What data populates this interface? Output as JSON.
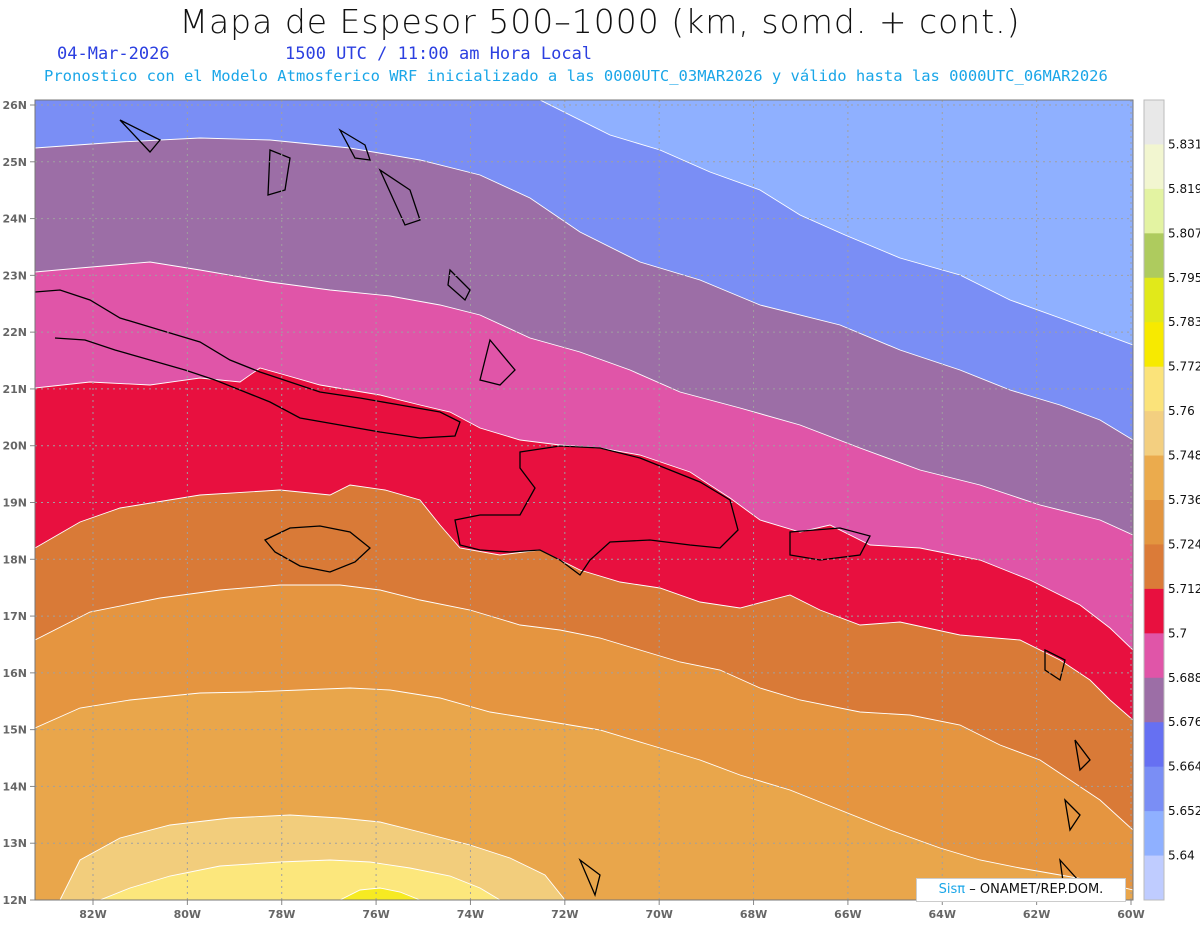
{
  "title": "Mapa de Espesor 500–1000 (km, somd. + cont.)",
  "date": "04-Mar-2026",
  "time": "1500 UTC / 11:00 am Hora Local",
  "description": "Pronostico con el Modelo Atmosferico WRF inicializado a las 0000UTC_03MAR2026 y válido hasta las  0000UTC_06MAR2026",
  "credit": {
    "brand": "Sisπ",
    "text": "– ONAMET/REP.DOM."
  },
  "map": {
    "lat_labels": [
      "26N",
      "25N",
      "24N",
      "23N",
      "22N",
      "21N",
      "20N",
      "19N",
      "18N",
      "17N",
      "16N",
      "15N",
      "14N",
      "13N",
      "12N"
    ],
    "lon_labels": [
      "82W",
      "80W",
      "78W",
      "76W",
      "74W",
      "72W",
      "70W",
      "68W",
      "66W",
      "64W",
      "62W",
      "60W"
    ],
    "band_colors": [
      "#8fb0ff",
      "#7a8ef5",
      "#6670f2",
      "#9c6ea6",
      "#e055a8",
      "#e8103f",
      "#d97a37",
      "#e59540",
      "#e9a64b",
      "#f2cd7c",
      "#fce77c",
      "#f6ea22"
    ]
  },
  "colorbar": {
    "levels": [
      "5.831",
      "5.819",
      "5.807",
      "5.795",
      "5.783",
      "5.772",
      "5.76",
      "5.748",
      "5.736",
      "5.724",
      "5.712",
      "5.7",
      "5.688",
      "5.676",
      "5.664",
      "5.652",
      "5.64"
    ],
    "colors": [
      "#e8e8e8",
      "#f2f6d0",
      "#e3f3a2",
      "#aecb5e",
      "#e1e91a",
      "#f7ea00",
      "#fbe37a",
      "#f3cf80",
      "#ebab4d",
      "#e3953f",
      "#db7b38",
      "#e8103f",
      "#e055a8",
      "#9c6ea6",
      "#6670f2",
      "#7a8ef5",
      "#8fb0ff",
      "#bfccff"
    ]
  }
}
